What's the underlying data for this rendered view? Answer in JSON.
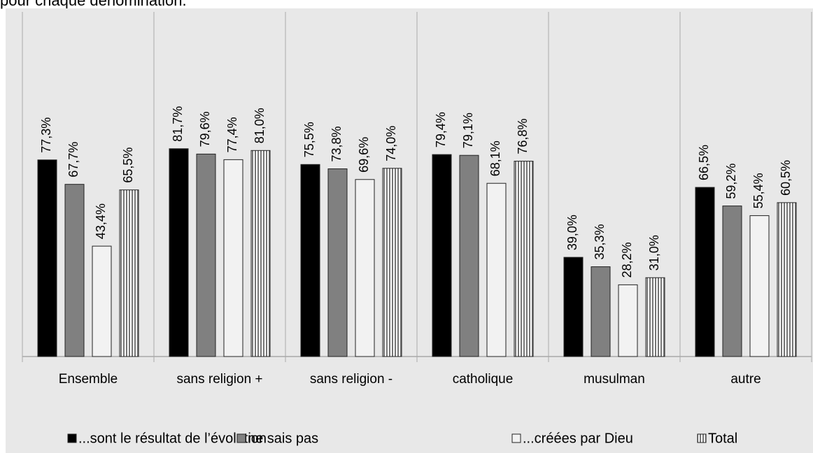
{
  "chart_data": {
    "type": "bar",
    "title": "pour chaque dénomination.",
    "categories": [
      "Ensemble",
      "sans religion +",
      "sans religion -",
      "catholique",
      "musulman",
      "autre"
    ],
    "series": [
      {
        "name": "...sont le résultat de l’évolution",
        "color": "#000000",
        "values": [
          77.3,
          81.7,
          75.5,
          79.4,
          39.0,
          66.5
        ],
        "value_labels": [
          "77,3%",
          "81,7%",
          "75,5%",
          "79,4%",
          "39,0%",
          "66,5%"
        ]
      },
      {
        "name": "ne sais pas",
        "color": "#808080",
        "values": [
          67.7,
          79.6,
          73.8,
          79.1,
          35.3,
          59.2
        ],
        "value_labels": [
          "67,7%",
          "79,6%",
          "73,8%",
          "79,1%",
          "35,3%",
          "59,2%"
        ]
      },
      {
        "name": "...créées par Dieu",
        "color": "#f2f2f2",
        "values": [
          43.4,
          77.4,
          69.6,
          68.1,
          28.2,
          55.4
        ],
        "value_labels": [
          "43,4%",
          "77,4%",
          "69,6%",
          "68,1%",
          "28,2%",
          "55,4%"
        ]
      },
      {
        "name": "Total",
        "color": "#9a9a9a",
        "pattern": "vertical-stripes",
        "values": [
          65.5,
          81.0,
          74.0,
          76.8,
          31.0,
          60.5
        ],
        "value_labels": [
          "65,5%",
          "81,0%",
          "74,0%",
          "76,8%",
          "31,0%",
          "60,5%"
        ]
      }
    ],
    "ylim": [
      0,
      130
    ],
    "legend": "bottom"
  }
}
